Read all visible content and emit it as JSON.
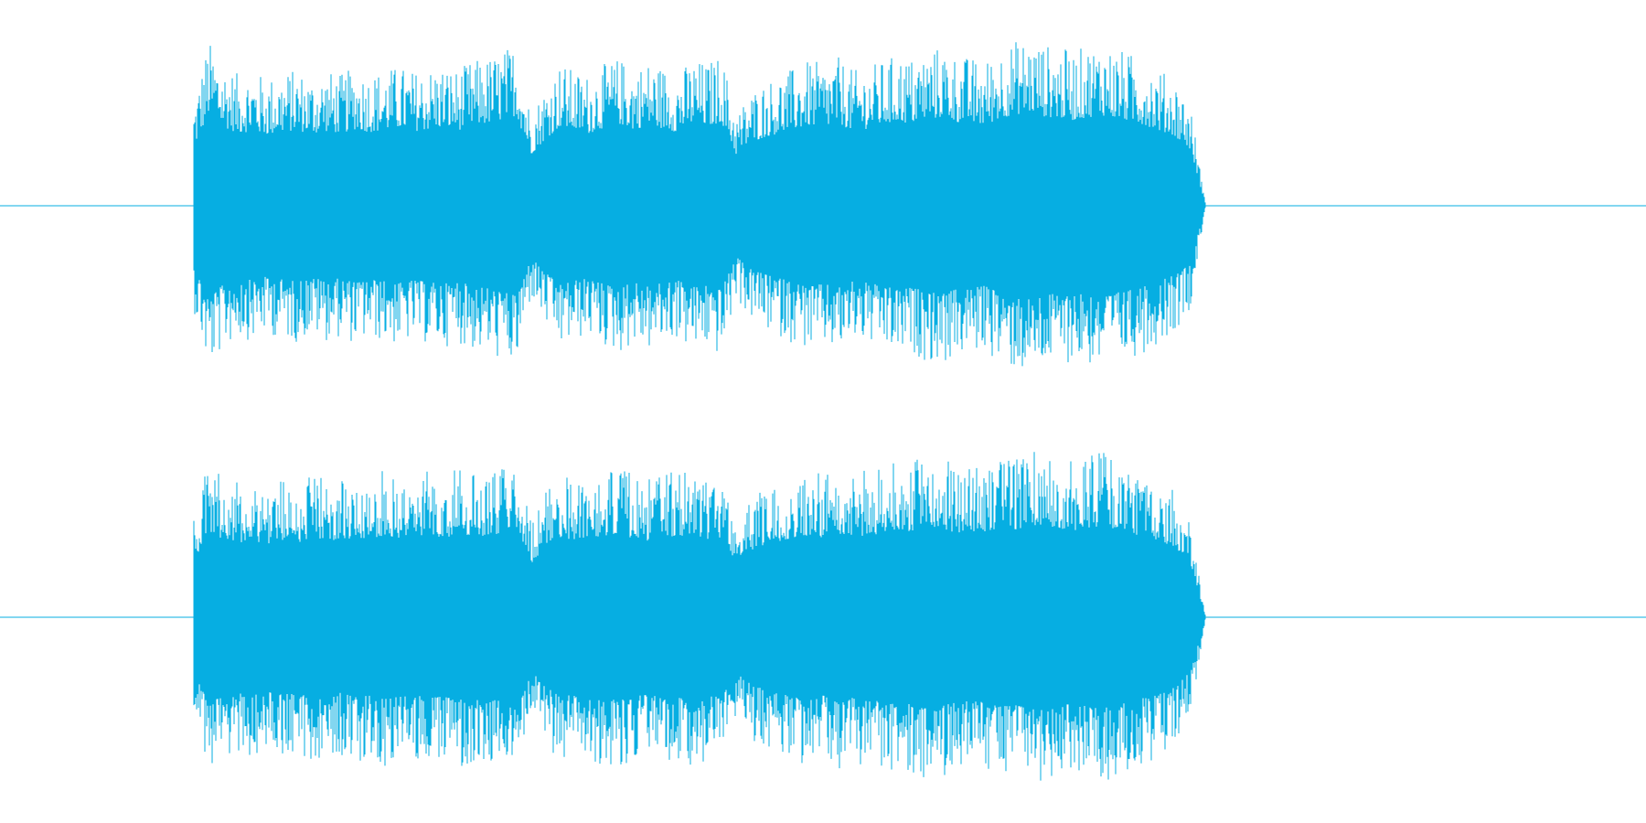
{
  "waveform": {
    "color": "#06aee2",
    "channels": [
      {
        "name_icon": "waveform-channel-1",
        "envelope": [
          0.62,
          0.98,
          0.85,
          0.78,
          0.8,
          0.76,
          0.79,
          0.81,
          0.77,
          0.8,
          0.78,
          0.82,
          0.79,
          0.81,
          0.83,
          0.8,
          0.82,
          0.84,
          0.81,
          0.86,
          0.88,
          0.92,
          0.97,
          0.55,
          0.72,
          0.85,
          0.8,
          0.78,
          0.84,
          0.88,
          0.82,
          0.86,
          0.83,
          0.79,
          0.87,
          0.85,
          0.9,
          0.55,
          0.68,
          0.74,
          0.78,
          0.82,
          0.86,
          0.84,
          0.88,
          0.8,
          0.83,
          0.86,
          0.9,
          0.88,
          0.92,
          0.95,
          0.9,
          0.88,
          0.86,
          0.94,
          0.98,
          1.0,
          0.96,
          0.94,
          0.92,
          0.95,
          0.97,
          0.93,
          0.9,
          0.86,
          0.8,
          0.74,
          0.6,
          0.02
        ]
      },
      {
        "name_icon": "waveform-channel-2",
        "envelope": [
          0.6,
          0.92,
          0.84,
          0.8,
          0.82,
          0.79,
          0.83,
          0.8,
          0.84,
          0.85,
          0.81,
          0.86,
          0.84,
          0.88,
          0.85,
          0.83,
          0.87,
          0.85,
          0.89,
          0.86,
          0.88,
          0.9,
          0.98,
          0.58,
          0.74,
          0.86,
          0.82,
          0.88,
          0.86,
          0.9,
          0.84,
          0.82,
          0.88,
          0.86,
          0.9,
          0.84,
          0.86,
          0.6,
          0.72,
          0.78,
          0.82,
          0.86,
          0.88,
          0.84,
          0.9,
          0.86,
          0.88,
          0.9,
          0.94,
          0.92,
          0.98,
          0.96,
          0.9,
          0.88,
          0.92,
          0.96,
          0.94,
          0.98,
          1.0,
          0.95,
          0.92,
          0.96,
          0.98,
          0.94,
          0.9,
          0.86,
          0.82,
          0.74,
          0.58,
          0.02
        ]
      }
    ]
  }
}
